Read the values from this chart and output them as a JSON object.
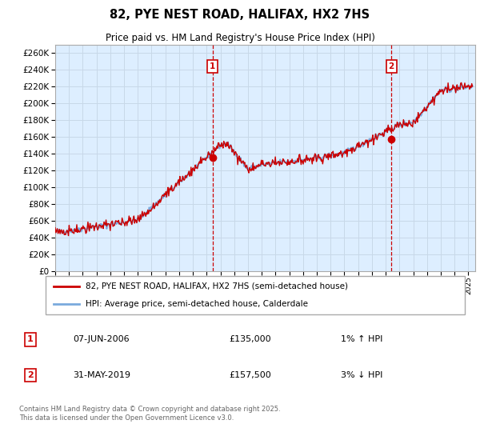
{
  "title": "82, PYE NEST ROAD, HALIFAX, HX2 7HS",
  "subtitle": "Price paid vs. HM Land Registry's House Price Index (HPI)",
  "legend_line1": "82, PYE NEST ROAD, HALIFAX, HX2 7HS (semi-detached house)",
  "legend_line2": "HPI: Average price, semi-detached house, Calderdale",
  "annotation1": {
    "num": "1",
    "date": "07-JUN-2006",
    "price": "£135,000",
    "pct": "1% ↑ HPI"
  },
  "annotation2": {
    "num": "2",
    "date": "31-MAY-2019",
    "price": "£157,500",
    "pct": "3% ↓ HPI"
  },
  "footnote": "Contains HM Land Registry data © Crown copyright and database right 2025.\nThis data is licensed under the Open Government Licence v3.0.",
  "sale1_x": 2006.44,
  "sale1_y": 135000,
  "sale2_x": 2019.41,
  "sale2_y": 157500,
  "xlim": [
    1995,
    2025.5
  ],
  "ylim": [
    0,
    270000
  ],
  "yticks": [
    0,
    20000,
    40000,
    60000,
    80000,
    100000,
    120000,
    140000,
    160000,
    180000,
    200000,
    220000,
    240000,
    260000
  ],
  "hpi_color": "#7aaadd",
  "sold_color": "#cc0000",
  "vline_color": "#cc0000",
  "plot_bg": "#ddeeff",
  "grid_color": "#c8d8e8",
  "annotation_box_color": "#cc0000"
}
